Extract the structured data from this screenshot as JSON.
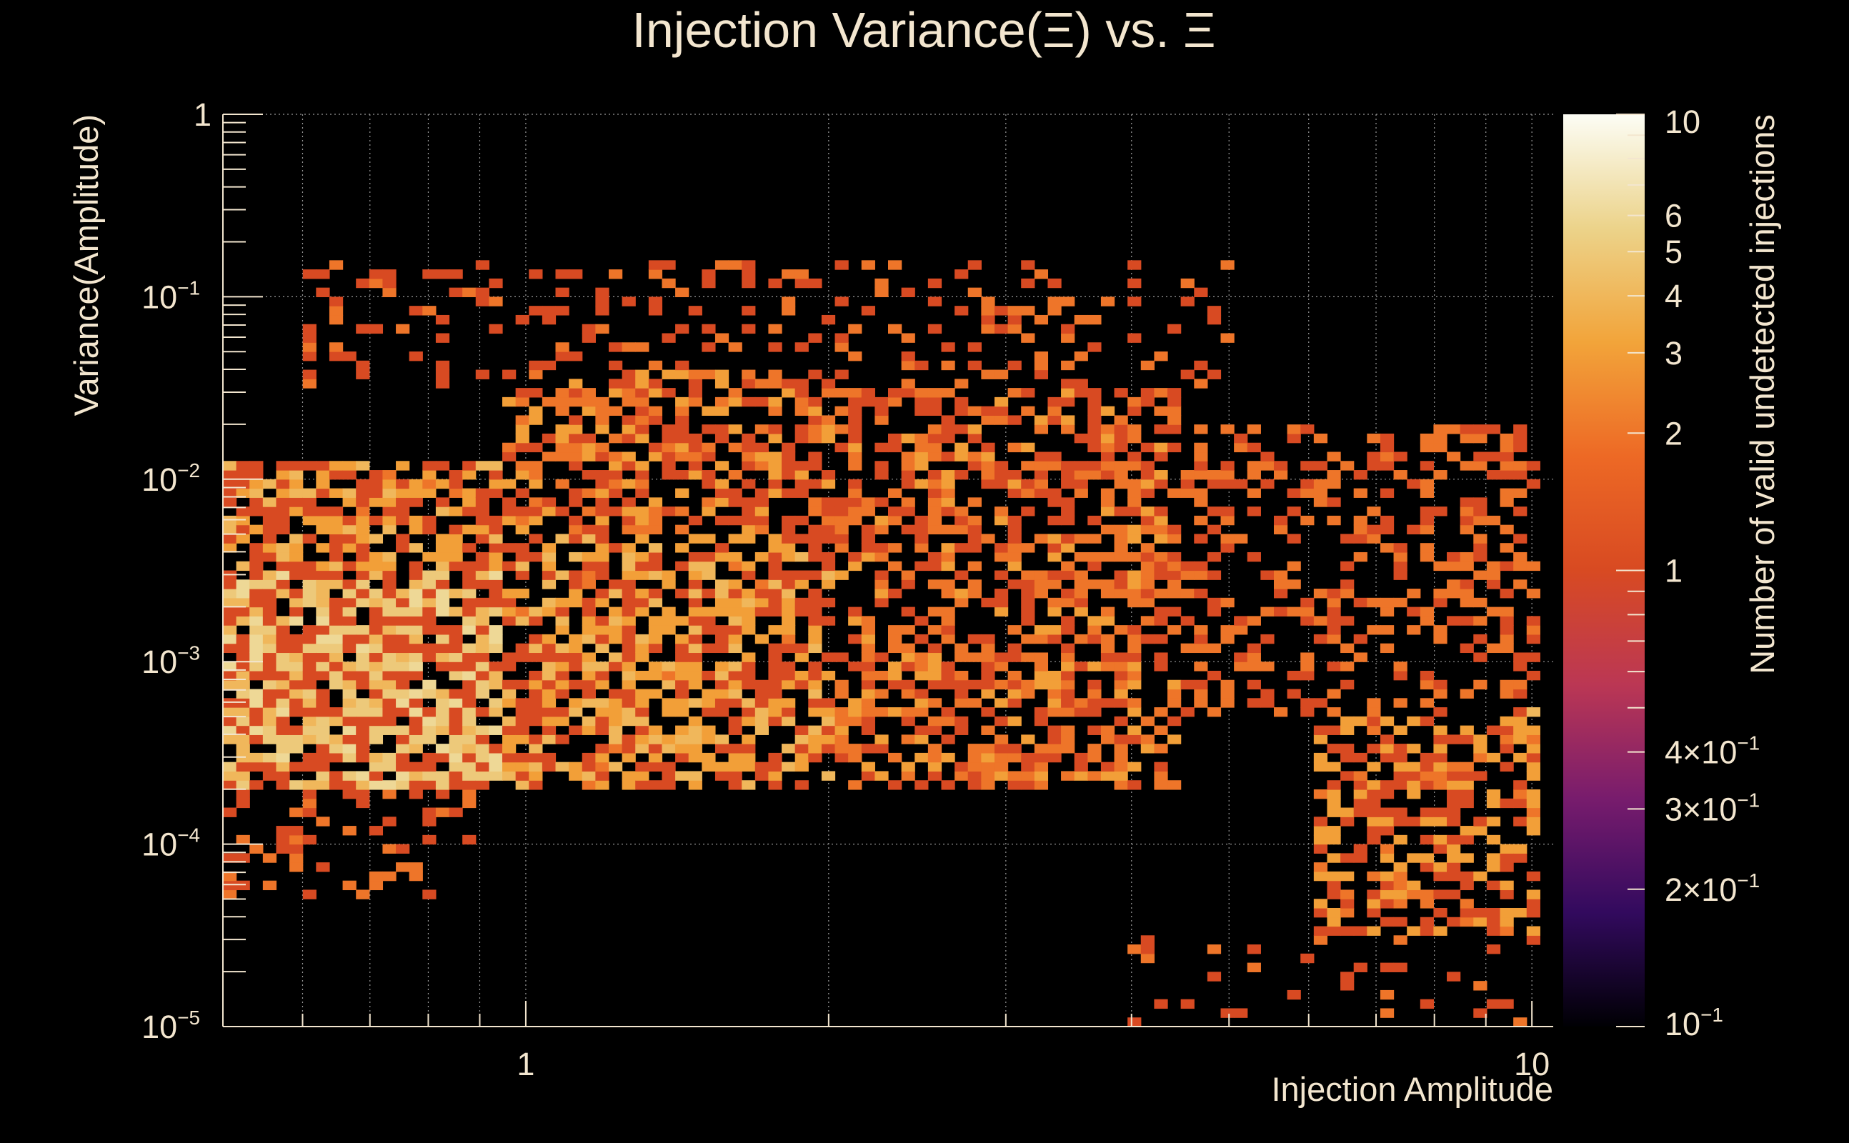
{
  "chart_data": {
    "type": "heatmap",
    "title": "Injection Variance(Ξ) vs. Ξ",
    "xlabel": "Injection Amplitude",
    "ylabel": "Variance(Amplitude)",
    "zlabel": "Number of valid undetected injections",
    "x_scale": "log",
    "y_scale": "log",
    "z_scale": "log",
    "xlim": [
      0.5,
      10.5
    ],
    "ylim": [
      1e-05,
      1
    ],
    "zlim": [
      0.1,
      10
    ],
    "grid": true,
    "x_ticks": [
      {
        "value": 1,
        "label": "1"
      },
      {
        "value": 10,
        "label": "10"
      }
    ],
    "y_ticks": [
      {
        "value": 1,
        "base": "1",
        "exp": ""
      },
      {
        "value": 0.1,
        "base": "10",
        "exp": "−1"
      },
      {
        "value": 0.01,
        "base": "10",
        "exp": "−2"
      },
      {
        "value": 0.001,
        "base": "10",
        "exp": "−3"
      },
      {
        "value": 0.0001,
        "base": "10",
        "exp": "−4"
      },
      {
        "value": 1e-05,
        "base": "10",
        "exp": "−5"
      }
    ],
    "z_ticks": [
      {
        "value": 10,
        "label": "10"
      },
      {
        "value": 6,
        "label": "6"
      },
      {
        "value": 5,
        "label": "5"
      },
      {
        "value": 4,
        "label": "4"
      },
      {
        "value": 3,
        "label": "3"
      },
      {
        "value": 2,
        "label": "2"
      },
      {
        "value": 1,
        "label": "1"
      },
      {
        "value": 0.4,
        "label": "4×10",
        "exp": "−1"
      },
      {
        "value": 0.3,
        "label": "3×10",
        "exp": "−1"
      },
      {
        "value": 0.2,
        "label": "2×10",
        "exp": "−1"
      },
      {
        "value": 0.1,
        "label": "10",
        "exp": "−1"
      }
    ],
    "colormap": [
      "#000004",
      "#320a5e",
      "#781c6d",
      "#bb3754",
      "#d84a22",
      "#ed6925",
      "#f2a43a",
      "#ecd38a",
      "#fcfdf5"
    ],
    "bins_x": 100,
    "bins_y": 100,
    "regions": [
      {
        "x": [
          0.5,
          0.95
        ],
        "y": [
          0.0002,
          0.003
        ],
        "density": 0.85,
        "level": 3.0
      },
      {
        "x": [
          0.5,
          0.95
        ],
        "y": [
          0.003,
          0.012
        ],
        "density": 0.7,
        "level": 2.0
      },
      {
        "x": [
          0.5,
          0.9
        ],
        "y": [
          5e-05,
          0.0002
        ],
        "density": 0.25,
        "level": 1.2
      },
      {
        "x": [
          0.95,
          2.0
        ],
        "y": [
          0.0002,
          0.005
        ],
        "density": 0.7,
        "level": 2.0
      },
      {
        "x": [
          0.95,
          2.0
        ],
        "y": [
          0.005,
          0.04
        ],
        "density": 0.55,
        "level": 1.5
      },
      {
        "x": [
          0.6,
          2.6
        ],
        "y": [
          0.03,
          0.15
        ],
        "density": 0.2,
        "level": 1.0
      },
      {
        "x": [
          2.0,
          4.5
        ],
        "y": [
          0.0002,
          0.03
        ],
        "density": 0.55,
        "level": 1.4
      },
      {
        "x": [
          2.0,
          5.0
        ],
        "y": [
          0.03,
          0.15
        ],
        "density": 0.18,
        "level": 1.0
      },
      {
        "x": [
          4.5,
          10.2
        ],
        "y": [
          0.0005,
          0.02
        ],
        "density": 0.35,
        "level": 1.2
      },
      {
        "x": [
          6.0,
          10.2
        ],
        "y": [
          3e-05,
          0.0005
        ],
        "density": 0.55,
        "level": 1.7
      },
      {
        "x": [
          4.0,
          10.2
        ],
        "y": [
          1e-05,
          3e-05
        ],
        "density": 0.1,
        "level": 1.0
      }
    ],
    "peak_cells": [
      {
        "x": 0.58,
        "y": 0.00055,
        "z": 6
      },
      {
        "x": 0.7,
        "y": 0.0008,
        "z": 5
      },
      {
        "x": 0.82,
        "y": 0.0006,
        "z": 5
      },
      {
        "x": 1.05,
        "y": 0.0008,
        "z": 4
      },
      {
        "x": 0.55,
        "y": 0.0012,
        "z": 5
      },
      {
        "x": 9.95,
        "y": 0.00055,
        "z": 4
      }
    ]
  }
}
